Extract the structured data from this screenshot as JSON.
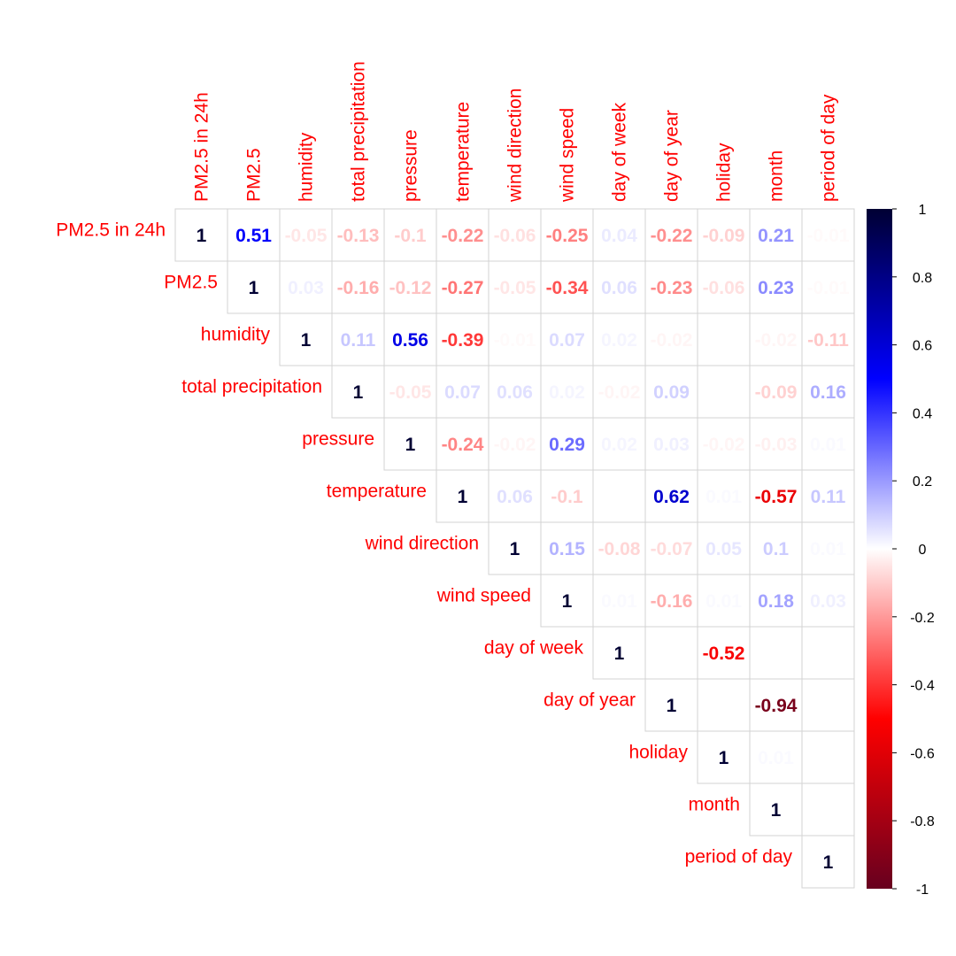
{
  "chart_data": {
    "type": "heatmap",
    "variables": [
      "PM2.5 in 24h",
      "PM2.5",
      "humidity",
      "total precipitation",
      "pressure",
      "temperature",
      "wind direction",
      "wind speed",
      "day of week",
      "day of year",
      "holiday",
      "month",
      "period of day"
    ],
    "matrix_upper": [
      [
        1,
        0.51,
        -0.05,
        -0.13,
        -0.1,
        -0.22,
        -0.06,
        -0.25,
        0.04,
        -0.22,
        -0.09,
        0.21,
        -0.01
      ],
      [
        1,
        0.03,
        -0.16,
        -0.12,
        -0.27,
        -0.05,
        -0.34,
        0.06,
        -0.23,
        -0.06,
        0.23,
        -0.01
      ],
      [
        1,
        0.11,
        0.56,
        -0.39,
        -0.01,
        0.07,
        0.02,
        -0.02,
        0,
        -0.02,
        -0.11
      ],
      [
        1,
        -0.05,
        0.07,
        0.06,
        0.02,
        -0.02,
        0.09,
        0,
        -0.09,
        0.16
      ],
      [
        1,
        -0.24,
        -0.02,
        0.29,
        0.02,
        0.03,
        -0.02,
        -0.03,
        0.01
      ],
      [
        1,
        0.06,
        -0.1,
        0,
        0.62,
        0.01,
        -0.57,
        0.11
      ],
      [
        1,
        0.15,
        -0.08,
        -0.07,
        0.05,
        0.1,
        0.01
      ],
      [
        1,
        0.01,
        -0.16,
        0.01,
        0.18,
        0.03
      ],
      [
        1,
        0,
        -0.52,
        0,
        0
      ],
      [
        1,
        0,
        -0.94,
        0
      ],
      [
        1,
        0.01,
        0
      ],
      [
        1,
        0
      ],
      [
        1
      ]
    ],
    "colorbar": {
      "range": [
        -1,
        1
      ],
      "ticks": [
        "1",
        "0.8",
        "0.6",
        "0.4",
        "0.2",
        "0",
        "-0.2",
        "-0.4",
        "-0.6",
        "-0.8",
        "-1"
      ],
      "colors": {
        "negative_end": "#67001f",
        "mid_red": "#ff0000",
        "zero": "#ffffff",
        "mid_blue": "#0000ff",
        "positive_end": "#000033"
      }
    },
    "label_color": "#ff0000",
    "grid_color": "#d3d3d3"
  }
}
